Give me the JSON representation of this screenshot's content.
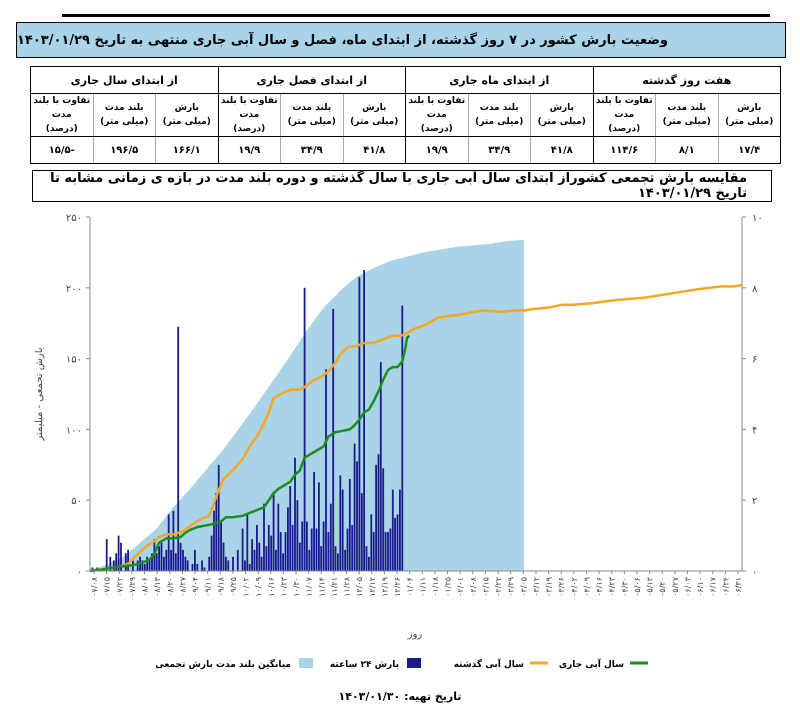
{
  "header": {
    "title": "وضعیت بارش کشور در ۷ روز گذشته، از ابتدای ماه، فصل و سال آبی جاری منتهی به تاریخ  ۱۴۰۳/۰۱/۲۹"
  },
  "stats_table": {
    "groups": [
      {
        "label": "هفت روز گذشته",
        "columns": [
          "بارش\n(میلی متر)",
          "بلند مدت\n(میلی متر)",
          "تفاوت با بلند مدت\n(درصد)"
        ],
        "values": [
          "۱۷/۴",
          "۸/۱",
          "۱۱۴/۶"
        ]
      },
      {
        "label": "از ابتدای ماه جاری",
        "columns": [
          "بارش\n(میلی متر)",
          "بلند مدت\n(میلی متر)",
          "تفاوت با بلند مدت\n(درصد)"
        ],
        "values": [
          "۴۱/۸",
          "۳۴/۹",
          "۱۹/۹"
        ]
      },
      {
        "label": "از ابتدای فصل جاری",
        "columns": [
          "بارش\n(میلی متر)",
          "بلند مدت\n(میلی متر)",
          "تفاوت با بلند مدت\n(درصد)"
        ],
        "values": [
          "۴۱/۸",
          "۳۴/۹",
          "۱۹/۹"
        ]
      },
      {
        "label": "از ابتدای سال جاری",
        "columns": [
          "بارش\n(میلی متر)",
          "بلند مدت\n(میلی متر)",
          "تفاوت با بلند مدت\n(درصد)"
        ],
        "values": [
          "۱۶۶/۱",
          "۱۹۶/۵",
          "-۱۵/۵"
        ]
      }
    ]
  },
  "chart_title": "مقایسه بارش تجمعی کشوراز ابتدای سال آبی جاری با سال گذشته و دوره بلند مدت در بازه ی زمانی مشابه تا تاریخ  ۱۴۰۳/۰۱/۲۹",
  "footer": {
    "label": "تاریخ تهیه:",
    "date": "۱۴۰۳/۰۱/۳۰"
  },
  "chart_data": {
    "type": "combo",
    "xlabel": "روز",
    "ylabel": "بارش تجمعی - میلیمتر",
    "ylabel_right": "",
    "ylim": [
      0,
      250
    ],
    "ylim_right": [
      0,
      10
    ],
    "yticks": [
      "۰",
      "۵۰",
      "۱۰۰",
      "۱۵۰",
      "۲۰۰",
      "۲۵۰"
    ],
    "yticks_right": [
      "۰",
      "۲",
      "۴",
      "۶",
      "۸",
      "۱۰"
    ],
    "colors": {
      "long_term": "#a9d3e6",
      "daily": "#1a1a8c",
      "last_year": "#f5a623",
      "current_year": "#1e8c1e"
    },
    "x_tick_labels": [
      "۰۷/۰۸",
      "۰۷/۱۵",
      "۰۷/۲۲",
      "۰۷/۲۹",
      "۰۸/۰۶",
      "۰۸/۱۳",
      "۰۸/۲۰",
      "۰۸/۲۷",
      "۰۹/۰۴",
      "۰۹/۱۱",
      "۰۹/۱۸",
      "۰۹/۲۵",
      "۱۰/۰۲",
      "۱۰/۰۹",
      "۱۰/۱۶",
      "۱۰/۲۳",
      "۱۰/۳۰",
      "۱۱/۰۷",
      "۱۱/۱۴",
      "۱۱/۲۱",
      "۱۱/۲۸",
      "۱۲/۰۵",
      "۱۲/۱۲",
      "۱۲/۱۹",
      "۱۲/۲۶",
      "۰۱/۰۴",
      "۰۱/۱۱",
      "۰۱/۱۸",
      "۰۱/۲۵",
      "۰۲/۰۱",
      "۰۲/۰۸",
      "۰۲/۱۵",
      "۰۲/۲۲",
      "۰۲/۲۹",
      "۰۳/۰۵",
      "۰۳/۱۲",
      "۰۳/۱۹",
      "۰۳/۲۶",
      "۰۴/۰۲",
      "۰۴/۰۹",
      "۰۴/۱۶",
      "۰۴/۲۳",
      "۰۴/۳۰",
      "۰۵/۰۶",
      "۰۵/۱۳",
      "۰۵/۲۰",
      "۰۵/۲۷",
      "۰۶/۰۳",
      "۰۶/۱۰",
      "۰۶/۱۷",
      "۰۶/۲۴",
      "۰۶/۳۱"
    ],
    "series": [
      {
        "name": "میانگین بلند مدت بارش تجمعی",
        "kind": "area",
        "axis": "left",
        "points": [
          [
            0,
            1
          ],
          [
            14,
            4
          ],
          [
            28,
            10
          ],
          [
            42,
            20
          ],
          [
            56,
            30
          ],
          [
            70,
            45
          ],
          [
            84,
            58
          ],
          [
            98,
            72
          ],
          [
            112,
            86
          ],
          [
            126,
            102
          ],
          [
            140,
            118
          ],
          [
            154,
            135
          ],
          [
            168,
            152
          ],
          [
            182,
            170
          ],
          [
            196,
            186
          ],
          [
            210,
            198
          ],
          [
            224,
            208
          ],
          [
            238,
            214
          ],
          [
            252,
            219
          ],
          [
            266,
            222
          ],
          [
            280,
            225
          ],
          [
            294,
            227
          ],
          [
            308,
            229
          ],
          [
            322,
            230
          ],
          [
            336,
            231
          ],
          [
            350,
            233
          ],
          [
            364,
            234
          ]
        ]
      },
      {
        "name": "بارش ۲۴ ساعته",
        "kind": "bar",
        "axis": "right",
        "points": [
          [
            2,
            0.1
          ],
          [
            6,
            0.1
          ],
          [
            9,
            0.05
          ],
          [
            14,
            0.9
          ],
          [
            17,
            0.4
          ],
          [
            20,
            0.3
          ],
          [
            22,
            0.5
          ],
          [
            24,
            1.0
          ],
          [
            26,
            0.8
          ],
          [
            30,
            0.5
          ],
          [
            32,
            0.6
          ],
          [
            36,
            0.3
          ],
          [
            40,
            0.3
          ],
          [
            42,
            0.4
          ],
          [
            44,
            0.3
          ],
          [
            46,
            0.2
          ],
          [
            48,
            0.4
          ],
          [
            50,
            0.3
          ],
          [
            52,
            0.5
          ],
          [
            54,
            0.9
          ],
          [
            56,
            0.5
          ],
          [
            58,
            0.7
          ],
          [
            60,
            0.8
          ],
          [
            62,
            0.4
          ],
          [
            64,
            0.6
          ],
          [
            66,
            1.6
          ],
          [
            68,
            0.6
          ],
          [
            70,
            1.7
          ],
          [
            72,
            0.5
          ],
          [
            74,
            6.9
          ],
          [
            76,
            0.8
          ],
          [
            78,
            0.6
          ],
          [
            80,
            0.4
          ],
          [
            82,
            0.3
          ],
          [
            86,
            0.2
          ],
          [
            88,
            0.6
          ],
          [
            90,
            0.2
          ],
          [
            94,
            0.3
          ],
          [
            96,
            0.1
          ],
          [
            100,
            0.4
          ],
          [
            102,
            1.0
          ],
          [
            104,
            1.7
          ],
          [
            106,
            2.2
          ],
          [
            108,
            3.0
          ],
          [
            110,
            1.4
          ],
          [
            112,
            0.8
          ],
          [
            114,
            0.4
          ],
          [
            116,
            0.3
          ],
          [
            120,
            0.4
          ],
          [
            124,
            0.6
          ],
          [
            128,
            1.2
          ],
          [
            130,
            0.3
          ],
          [
            132,
            1.6
          ],
          [
            134,
            0.2
          ],
          [
            136,
            0.9
          ],
          [
            138,
            0.6
          ],
          [
            140,
            1.3
          ],
          [
            142,
            0.8
          ],
          [
            144,
            0.4
          ],
          [
            146,
            1.9
          ],
          [
            148,
            0.7
          ],
          [
            150,
            1.3
          ],
          [
            152,
            1.0
          ],
          [
            154,
            2.2
          ],
          [
            156,
            0.6
          ],
          [
            158,
            1.9
          ],
          [
            160,
            1.1
          ],
          [
            162,
            0.5
          ],
          [
            164,
            1.1
          ],
          [
            166,
            1.8
          ],
          [
            168,
            2.4
          ],
          [
            170,
            1.3
          ],
          [
            172,
            3.2
          ],
          [
            174,
            2.0
          ],
          [
            176,
            0.8
          ],
          [
            178,
            1.4
          ],
          [
            180,
            8.0
          ],
          [
            182,
            1.4
          ],
          [
            184,
            0.6
          ],
          [
            186,
            1.2
          ],
          [
            188,
            2.8
          ],
          [
            190,
            1.2
          ],
          [
            192,
            2.5
          ],
          [
            194,
            0.7
          ],
          [
            196,
            1.4
          ],
          [
            198,
            5.7
          ],
          [
            200,
            1.1
          ],
          [
            202,
            1.9
          ],
          [
            204,
            7.4
          ],
          [
            206,
            0.7
          ],
          [
            208,
            0.5
          ],
          [
            210,
            2.7
          ],
          [
            212,
            2.3
          ],
          [
            214,
            0.6
          ],
          [
            216,
            1.2
          ],
          [
            218,
            2.6
          ],
          [
            220,
            1.3
          ],
          [
            222,
            3.6
          ],
          [
            224,
            3.1
          ],
          [
            226,
            8.3
          ],
          [
            228,
            2.2
          ],
          [
            230,
            8.5
          ],
          [
            232,
            0.7
          ],
          [
            234,
            0.4
          ],
          [
            236,
            1.6
          ],
          [
            238,
            1.1
          ],
          [
            240,
            3.0
          ],
          [
            242,
            3.3
          ],
          [
            244,
            5.9
          ],
          [
            246,
            2.9
          ],
          [
            248,
            1.1
          ],
          [
            250,
            1.1
          ],
          [
            252,
            1.2
          ],
          [
            254,
            2.3
          ],
          [
            256,
            1.5
          ],
          [
            258,
            1.6
          ],
          [
            260,
            2.3
          ],
          [
            262,
            7.5
          ]
        ]
      },
      {
        "name": "سال آبی گذشته",
        "kind": "line",
        "axis": "left",
        "points": [
          [
            0,
            0
          ],
          [
            8,
            1
          ],
          [
            16,
            2
          ],
          [
            24,
            3
          ],
          [
            32,
            5
          ],
          [
            40,
            12
          ],
          [
            48,
            18
          ],
          [
            54,
            21
          ],
          [
            58,
            24
          ],
          [
            64,
            26
          ],
          [
            70,
            26
          ],
          [
            78,
            28
          ],
          [
            86,
            33
          ],
          [
            94,
            37
          ],
          [
            100,
            39
          ],
          [
            104,
            48
          ],
          [
            108,
            57
          ],
          [
            112,
            65
          ],
          [
            116,
            68
          ],
          [
            122,
            73
          ],
          [
            128,
            79
          ],
          [
            134,
            88
          ],
          [
            140,
            95
          ],
          [
            146,
            104
          ],
          [
            150,
            112
          ],
          [
            154,
            122
          ],
          [
            160,
            125
          ],
          [
            168,
            128
          ],
          [
            176,
            128
          ],
          [
            182,
            131
          ],
          [
            188,
            135
          ],
          [
            194,
            137
          ],
          [
            200,
            141
          ],
          [
            206,
            147
          ],
          [
            210,
            153
          ],
          [
            216,
            158
          ],
          [
            224,
            159
          ],
          [
            230,
            161
          ],
          [
            238,
            161
          ],
          [
            244,
            163
          ],
          [
            250,
            165
          ],
          [
            254,
            166
          ],
          [
            260,
            166
          ],
          [
            264,
            167
          ],
          [
            272,
            171
          ],
          [
            282,
            174
          ],
          [
            292,
            179
          ],
          [
            300,
            180
          ],
          [
            310,
            181
          ],
          [
            322,
            183
          ],
          [
            330,
            184
          ],
          [
            345,
            183
          ],
          [
            356,
            184
          ],
          [
            364,
            184
          ],
          [
            372,
            185
          ],
          [
            384,
            186
          ],
          [
            396,
            188
          ],
          [
            405,
            188
          ],
          [
            420,
            189
          ],
          [
            438,
            191
          ],
          [
            450,
            192
          ],
          [
            465,
            193
          ],
          [
            480,
            195
          ],
          [
            495,
            197
          ],
          [
            510,
            199
          ],
          [
            520,
            200
          ],
          [
            530,
            201
          ],
          [
            540,
            201
          ],
          [
            547,
            202
          ]
        ]
      },
      {
        "name": "سال آبی جاری",
        "kind": "line",
        "axis": "left",
        "points": [
          [
            0,
            0
          ],
          [
            10,
            1
          ],
          [
            16,
            2
          ],
          [
            24,
            3
          ],
          [
            36,
            4
          ],
          [
            44,
            6
          ],
          [
            50,
            8
          ],
          [
            54,
            12
          ],
          [
            58,
            20
          ],
          [
            64,
            23
          ],
          [
            70,
            23
          ],
          [
            76,
            24
          ],
          [
            80,
            27
          ],
          [
            84,
            29
          ],
          [
            90,
            31
          ],
          [
            96,
            32
          ],
          [
            102,
            33
          ],
          [
            106,
            34
          ],
          [
            110,
            35
          ],
          [
            114,
            38
          ],
          [
            120,
            38
          ],
          [
            128,
            39
          ],
          [
            134,
            41
          ],
          [
            140,
            43
          ],
          [
            146,
            45
          ],
          [
            150,
            50
          ],
          [
            154,
            55
          ],
          [
            158,
            58
          ],
          [
            164,
            61
          ],
          [
            168,
            63
          ],
          [
            172,
            68
          ],
          [
            176,
            71
          ],
          [
            180,
            80
          ],
          [
            186,
            83
          ],
          [
            192,
            86
          ],
          [
            196,
            88
          ],
          [
            200,
            95
          ],
          [
            206,
            98
          ],
          [
            212,
            99
          ],
          [
            218,
            100
          ],
          [
            222,
            103
          ],
          [
            226,
            107
          ],
          [
            230,
            112
          ],
          [
            234,
            114
          ],
          [
            238,
            120
          ],
          [
            242,
            127
          ],
          [
            246,
            135
          ],
          [
            250,
            142
          ],
          [
            254,
            144
          ],
          [
            258,
            144
          ],
          [
            262,
            148
          ],
          [
            264,
            155
          ],
          [
            266,
            165
          ],
          [
            268,
            166
          ]
        ]
      }
    ]
  }
}
